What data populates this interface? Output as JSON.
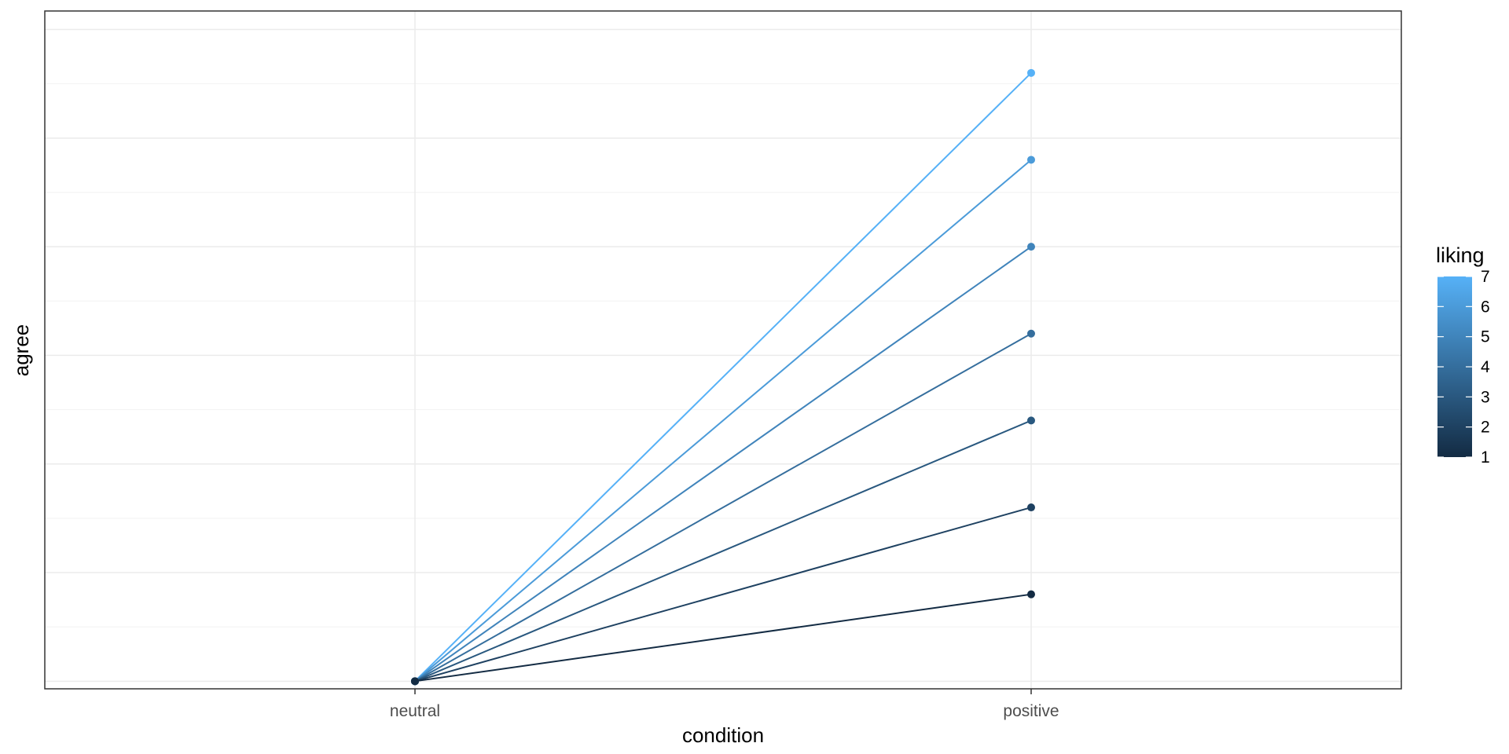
{
  "chart_data": {
    "type": "line",
    "title": "",
    "xlabel": "condition",
    "ylabel": "agree",
    "categories": [
      "neutral",
      "positive"
    ],
    "ylim": [
      0.93,
      7.17
    ],
    "grid": true,
    "y_tick_labels_shown": false,
    "series": [
      {
        "liking": 1,
        "values": [
          1.0,
          1.8
        ]
      },
      {
        "liking": 2,
        "values": [
          1.0,
          2.6
        ]
      },
      {
        "liking": 3,
        "values": [
          1.0,
          3.4
        ]
      },
      {
        "liking": 4,
        "values": [
          1.0,
          4.2
        ]
      },
      {
        "liking": 5,
        "values": [
          1.0,
          5.0
        ]
      },
      {
        "liking": 6,
        "values": [
          1.0,
          5.8
        ]
      },
      {
        "liking": 7,
        "values": [
          1.0,
          6.6
        ]
      }
    ],
    "legend": {
      "title": "liking",
      "type": "colorbar",
      "placement": "right",
      "min": 1,
      "max": 7,
      "breaks": [
        1,
        2,
        3,
        4,
        5,
        6,
        7
      ],
      "labels": [
        "1",
        "2",
        "3",
        "4",
        "5",
        "6",
        "7"
      ],
      "low_color": "#132B43",
      "high_color": "#56B1F7"
    }
  }
}
